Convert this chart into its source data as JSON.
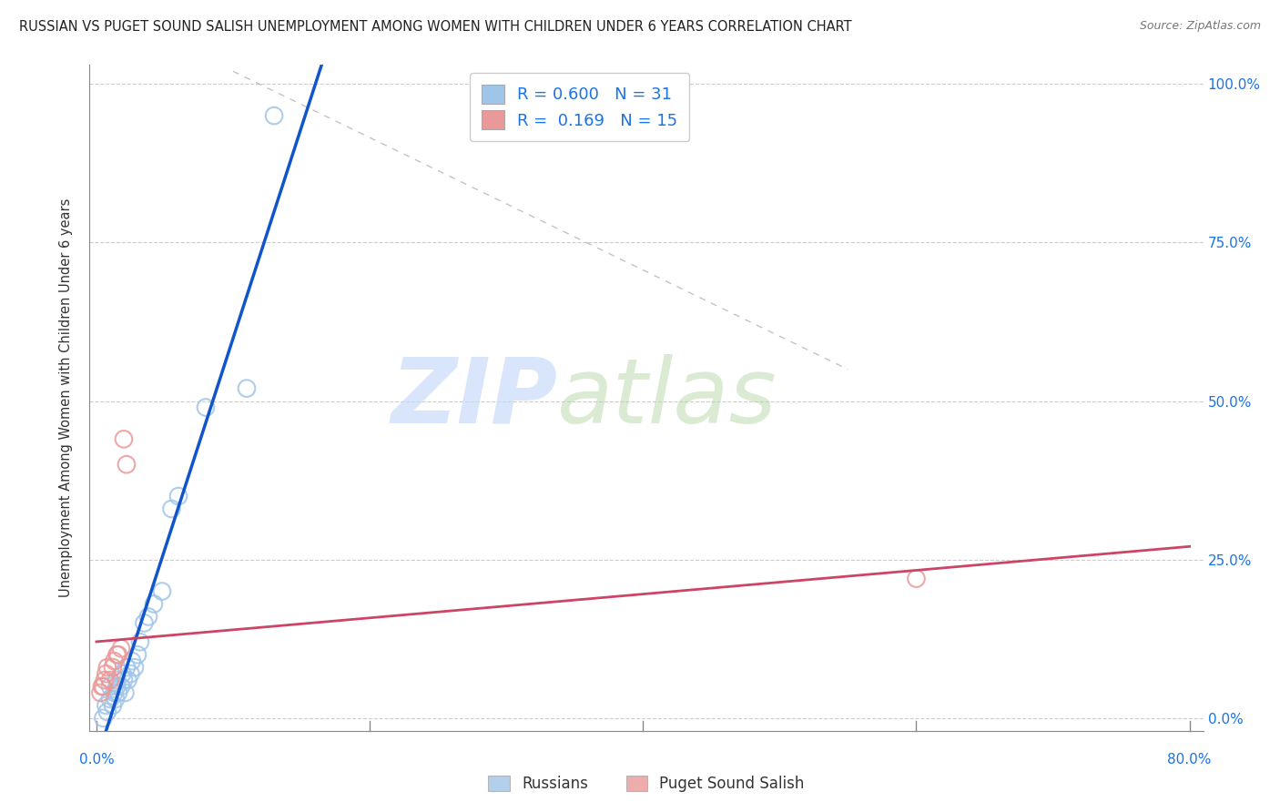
{
  "title": "RUSSIAN VS PUGET SOUND SALISH UNEMPLOYMENT AMONG WOMEN WITH CHILDREN UNDER 6 YEARS CORRELATION CHART",
  "source": "Source: ZipAtlas.com",
  "ylabel": "Unemployment Among Women with Children Under 6 years",
  "r_russian": 0.6,
  "n_russian": 31,
  "r_salish": 0.169,
  "n_salish": 15,
  "blue_color": "#9fc5e8",
  "pink_color": "#ea9999",
  "blue_line_color": "#1155cc",
  "pink_line_color": "#cc4466",
  "watermark_zip": "ZIP",
  "watermark_atlas": "atlas",
  "ytick_labels": [
    "0.0%",
    "25.0%",
    "50.0%",
    "75.0%",
    "100.0%"
  ],
  "russians_x": [
    0.005,
    0.007,
    0.008,
    0.01,
    0.01,
    0.012,
    0.013,
    0.014,
    0.015,
    0.015,
    0.016,
    0.018,
    0.019,
    0.02,
    0.021,
    0.022,
    0.023,
    0.025,
    0.026,
    0.028,
    0.03,
    0.032,
    0.035,
    0.038,
    0.042,
    0.048,
    0.055,
    0.06,
    0.08,
    0.11,
    0.13
  ],
  "russians_y": [
    0.0,
    0.02,
    0.01,
    0.03,
    0.05,
    0.02,
    0.04,
    0.03,
    0.05,
    0.06,
    0.04,
    0.05,
    0.07,
    0.06,
    0.04,
    0.08,
    0.06,
    0.07,
    0.09,
    0.08,
    0.1,
    0.12,
    0.15,
    0.16,
    0.18,
    0.2,
    0.33,
    0.35,
    0.49,
    0.52,
    0.95
  ],
  "salish_x": [
    0.003,
    0.004,
    0.005,
    0.006,
    0.007,
    0.008,
    0.01,
    0.012,
    0.013,
    0.015,
    0.016,
    0.018,
    0.02,
    0.022,
    0.6
  ],
  "salish_y": [
    0.04,
    0.05,
    0.05,
    0.06,
    0.07,
    0.08,
    0.06,
    0.08,
    0.09,
    0.1,
    0.1,
    0.11,
    0.44,
    0.4,
    0.22
  ],
  "xmin": 0.0,
  "xmax": 0.8,
  "ymin": 0.0,
  "ymax": 1.0
}
